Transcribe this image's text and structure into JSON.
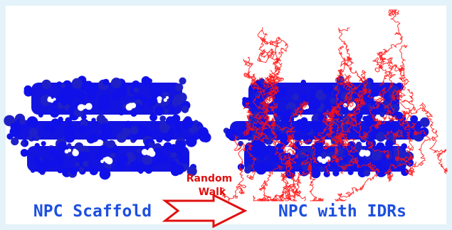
{
  "left_label": "NPC Scaffold",
  "arrow_label": {
    "line1": "Random",
    "line2": "Walk"
  },
  "right_label": "NPC with IDRs"
}
